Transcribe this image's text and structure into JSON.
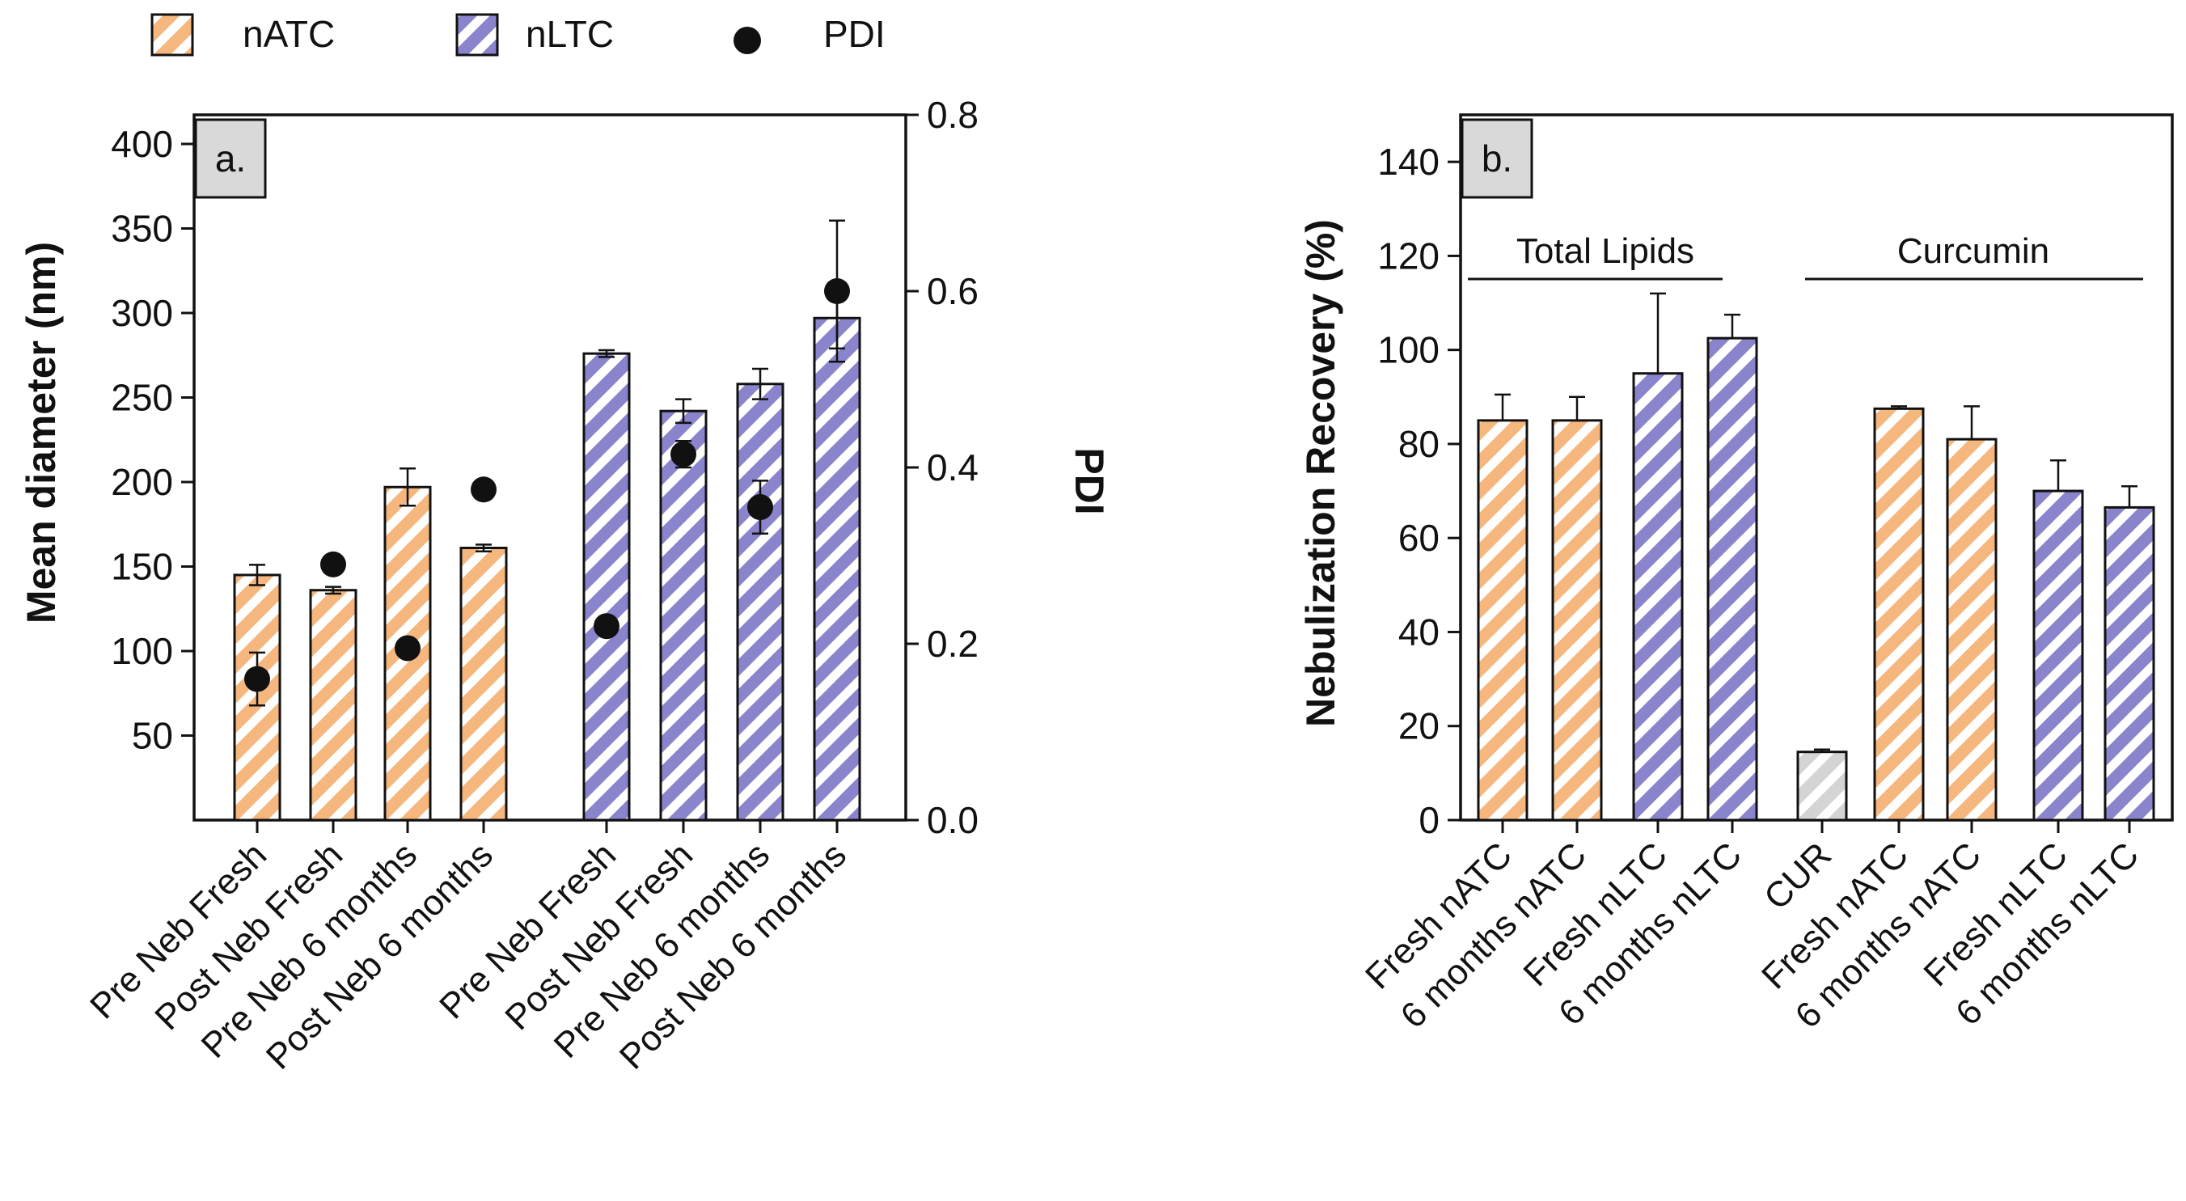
{
  "legend": [
    {
      "label": "nATC",
      "swatch": "orange"
    },
    {
      "label": "nLTC",
      "swatch": "blue"
    },
    {
      "label": "PDI",
      "swatch": "dot"
    }
  ],
  "colors": {
    "orange": "#f5b77e",
    "blue": "#8a84cc",
    "gray": "#d4d4d4",
    "axis": "#111111"
  },
  "chart_data": [
    {
      "type": "bar",
      "panel_label": "a.",
      "ylabel": "Mean diameter (nm)",
      "y2label": "PDI",
      "ylim": [
        0,
        400
      ],
      "yticks": [
        50,
        100,
        150,
        200,
        250,
        300,
        350,
        400
      ],
      "y2lim": [
        0,
        0.8
      ],
      "y2ticks": [
        "0.0",
        "0.2",
        "0.4",
        "0.6",
        "0.8"
      ],
      "categories": [
        "Pre Neb Fresh",
        "Post Neb Fresh",
        "Pre Neb 6 months",
        "Post Neb 6 months",
        "Pre Neb Fresh",
        "Post Neb Fresh",
        "Pre Neb 6 months",
        "Post Neb 6 months"
      ],
      "groups": [
        "nATC",
        "nATC",
        "nATC",
        "nATC",
        "nLTC",
        "nLTC",
        "nLTC",
        "nLTC"
      ],
      "values": [
        145,
        136,
        197,
        161,
        276,
        242,
        258,
        297
      ],
      "errors": [
        6,
        2,
        11,
        2,
        2,
        7,
        9,
        18
      ],
      "pdi": [
        0.16,
        0.29,
        0.195,
        0.375,
        0.22,
        0.415,
        0.355,
        0.6
      ],
      "pdi_errors": [
        0.03,
        0,
        0,
        0,
        0,
        0.015,
        0.03,
        0.08
      ]
    },
    {
      "type": "bar",
      "panel_label": "b.",
      "ylabel": "Nebulization Recovery (%)",
      "ylim": [
        0,
        150
      ],
      "yticks": [
        0,
        20,
        40,
        60,
        80,
        100,
        120,
        140
      ],
      "annotations": [
        "Total Lipids",
        "Curcumin"
      ],
      "categories": [
        "Fresh nATC",
        "6 months nATC",
        "Fresh nLTC",
        "6 months nLTC",
        "CUR",
        "Fresh nATC",
        "6 months nATC",
        "Fresh nLTC",
        "6 months nLTC"
      ],
      "groups": [
        "nATC",
        "nATC",
        "nLTC",
        "nLTC",
        "CUR",
        "nATC",
        "nATC",
        "nLTC",
        "nLTC"
      ],
      "values": [
        85,
        85,
        95,
        102.5,
        14.5,
        87.5,
        81,
        70,
        66.5
      ],
      "errors": [
        5.5,
        5,
        17,
        5,
        0.5,
        0.5,
        7,
        6.5,
        4.5
      ]
    }
  ]
}
